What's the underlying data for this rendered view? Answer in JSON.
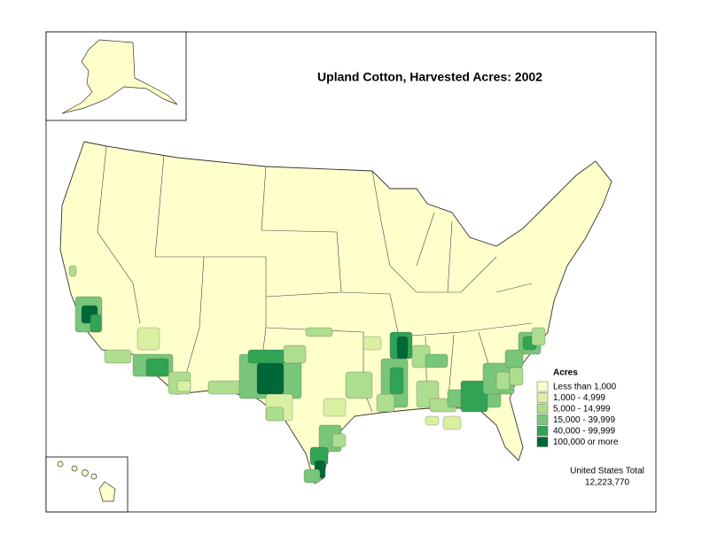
{
  "title": "Upland Cotton, Harvested Acres:  2002",
  "legend": {
    "title": "Acres",
    "items": [
      {
        "label": "Less than 1,000",
        "color": "#ffffcc"
      },
      {
        "label": "1,000 - 4,999",
        "color": "#d9f0a3"
      },
      {
        "label": "5,000 - 14,999",
        "color": "#addd8e"
      },
      {
        "label": "15,000 - 39,999",
        "color": "#78c679"
      },
      {
        "label": "40,000 - 99,999",
        "color": "#31a354"
      },
      {
        "label": "100,000 or more",
        "color": "#006837"
      }
    ]
  },
  "total": {
    "label": "United States Total",
    "value": "12,223,770"
  }
}
